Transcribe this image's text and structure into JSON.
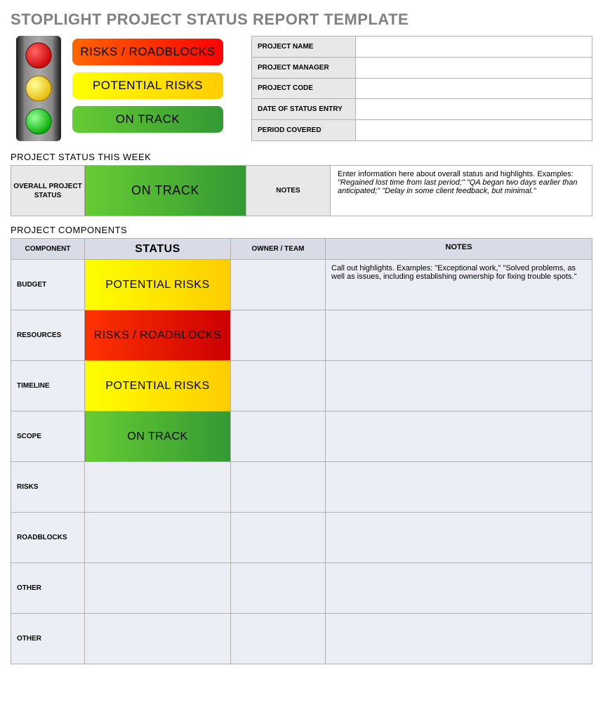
{
  "page_title": "STOPLIGHT PROJECT STATUS REPORT TEMPLATE",
  "colors": {
    "title_text": "#808080",
    "border": "#b0b0b0",
    "header_bg": "#d9dce6",
    "row_bg": "#eceef5",
    "label_bg": "#e8e8e8",
    "red_grad_start": "#ff6600",
    "red_grad_end": "#ff0000",
    "yellow_grad_start": "#ffff00",
    "yellow_grad_end": "#ffcc00",
    "green_grad_start": "#66cc33",
    "green_grad_end": "#339933",
    "stoplight_red": "#e60000",
    "stoplight_yellow": "#ffcc00",
    "stoplight_green": "#33cc33"
  },
  "legend": {
    "red": "RISKS / ROADBLOCKS",
    "yellow": "POTENTIAL RISKS",
    "green": "ON TRACK"
  },
  "info_fields": {
    "project_name": {
      "label": "PROJECT NAME",
      "value": ""
    },
    "project_manager": {
      "label": "PROJECT MANAGER",
      "value": ""
    },
    "project_code": {
      "label": "PROJECT CODE",
      "value": ""
    },
    "date_of_status_entry": {
      "label": "DATE OF STATUS ENTRY",
      "value": ""
    },
    "period_covered": {
      "label": "PERIOD COVERED",
      "value": ""
    }
  },
  "status_week": {
    "section_title": "PROJECT STATUS THIS WEEK",
    "overall_label": "OVERALL PROJECT STATUS",
    "status_text": "ON TRACK",
    "status_class": "status-green",
    "notes_label": "NOTES",
    "notes_lead": "Enter information here about overall status and highlights. Examples: ",
    "notes_examples": "\"Regained lost time from last period;\" \"QA began two days earlier than anticipated;\" \"Delay in some client feedback, but minimal.\""
  },
  "components": {
    "section_title": "PROJECT COMPONENTS",
    "headers": {
      "component": "COMPONENT",
      "status": "STATUS",
      "owner": "OWNER / TEAM",
      "notes": "NOTES"
    },
    "rows": [
      {
        "component": "BUDGET",
        "status_text": "POTENTIAL RISKS",
        "status_class": "status-yellow",
        "owner": "",
        "notes": "Call out highlights. Examples: \"Exceptional work,\" \"Solved problems, as well as issues, including establishing ownership for fixing trouble spots.\""
      },
      {
        "component": "RESOURCES",
        "status_text": "RISKS / ROADBLOCKS",
        "status_class": "status-red",
        "owner": "",
        "notes": ""
      },
      {
        "component": "TIMELINE",
        "status_text": "POTENTIAL RISKS",
        "status_class": "status-yellow",
        "owner": "",
        "notes": ""
      },
      {
        "component": "SCOPE",
        "status_text": "ON TRACK",
        "status_class": "status-green",
        "owner": "",
        "notes": ""
      },
      {
        "component": "RISKS",
        "status_text": "",
        "status_class": "status-blank",
        "owner": "",
        "notes": ""
      },
      {
        "component": "ROADBLOCKS",
        "status_text": "",
        "status_class": "status-blank",
        "owner": "",
        "notes": ""
      },
      {
        "component": "OTHER",
        "status_text": "",
        "status_class": "status-blank",
        "owner": "",
        "notes": ""
      },
      {
        "component": "OTHER",
        "status_text": "",
        "status_class": "status-blank",
        "owner": "",
        "notes": ""
      }
    ]
  }
}
